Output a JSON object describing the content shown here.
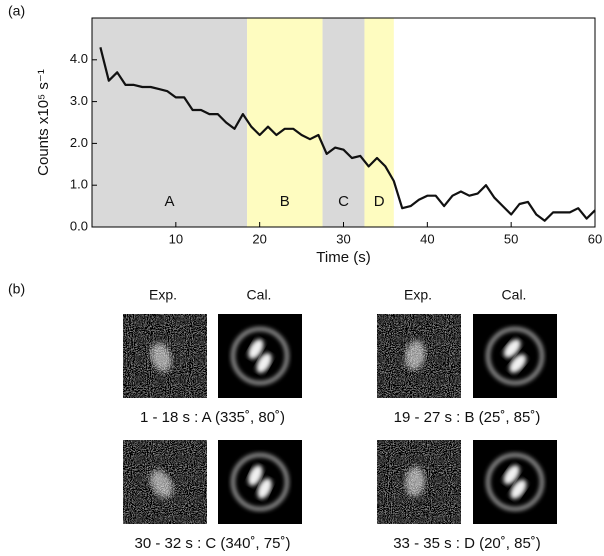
{
  "panel_a_label": "(a)",
  "panel_b_label": "(b)",
  "chart_data": {
    "type": "line",
    "xlabel": "Time (s)",
    "ylabel": "Counts x10⁵ s⁻¹",
    "x": [
      1,
      2,
      3,
      4,
      5,
      6,
      7,
      8,
      9,
      10,
      11,
      12,
      13,
      14,
      15,
      16,
      17,
      18,
      19,
      20,
      21,
      22,
      23,
      24,
      25,
      26,
      27,
      28,
      29,
      30,
      31,
      32,
      33,
      34,
      35,
      36,
      37,
      38,
      39,
      40,
      41,
      42,
      43,
      44,
      45,
      46,
      47,
      48,
      49,
      50,
      51,
      52,
      53,
      54,
      55,
      56,
      57,
      58,
      59,
      60
    ],
    "values": [
      4.3,
      3.5,
      3.7,
      3.4,
      3.4,
      3.35,
      3.35,
      3.3,
      3.25,
      3.1,
      3.1,
      2.8,
      2.8,
      2.7,
      2.7,
      2.5,
      2.35,
      2.7,
      2.4,
      2.2,
      2.4,
      2.2,
      2.35,
      2.35,
      2.2,
      2.1,
      2.2,
      1.75,
      1.9,
      1.85,
      1.65,
      1.7,
      1.45,
      1.65,
      1.45,
      1.1,
      0.45,
      0.5,
      0.65,
      0.75,
      0.75,
      0.5,
      0.75,
      0.85,
      0.75,
      0.8,
      1.0,
      0.7,
      0.5,
      0.3,
      0.55,
      0.6,
      0.3,
      0.15,
      0.35,
      0.35,
      0.35,
      0.45,
      0.2,
      0.4
    ],
    "color": "#111111",
    "xlim": [
      0,
      60
    ],
    "ylim": [
      0,
      5
    ],
    "xticks": [
      10,
      20,
      30,
      40,
      50,
      60
    ],
    "yticks": [
      {
        "value": 0,
        "label": "0.0"
      },
      {
        "value": 1,
        "label": "1.0"
      },
      {
        "value": 2,
        "label": "2.0"
      },
      {
        "value": 3,
        "label": "3.0"
      },
      {
        "value": 4,
        "label": "4.0"
      }
    ],
    "regions": [
      {
        "label": "A",
        "start": 0,
        "end": 18.5,
        "color": "#d9d9d9"
      },
      {
        "label": "B",
        "start": 18.5,
        "end": 27.5,
        "color": "#fefcc0"
      },
      {
        "label": "C",
        "start": 27.5,
        "end": 32.5,
        "color": "#d9d9d9"
      },
      {
        "label": "D",
        "start": 32.5,
        "end": 36,
        "color": "#fefcc0"
      }
    ]
  },
  "panel_b": {
    "column_headers": [
      "Exp.",
      "Cal.",
      "Exp.",
      "Cal."
    ],
    "captions": [
      "1 - 18 s : A (335˚, 80˚)",
      "19 - 27 s : B (25˚, 85˚)",
      "30 - 32 s : C (340˚, 75˚)",
      "33 - 35 s : D (20˚, 85˚)"
    ]
  }
}
